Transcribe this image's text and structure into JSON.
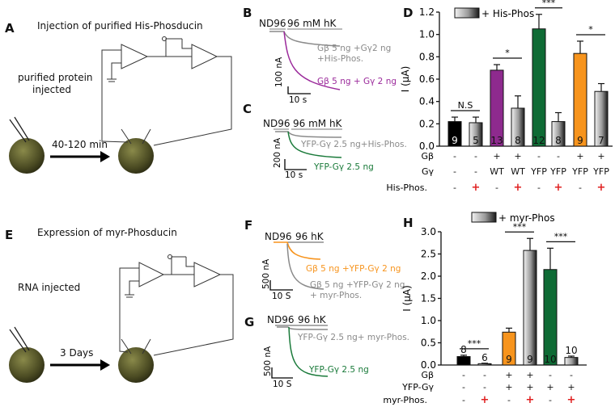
{
  "panelA": {
    "label": "A",
    "title": "Injection of purified His-Phosducin",
    "note1": "purified protein",
    "note2": "injected",
    "time": "40-120 min"
  },
  "panelE": {
    "label": "E",
    "title": "Expression of myr-Phosducin",
    "note": "RNA injected",
    "time": "3 Days"
  },
  "panelB": {
    "label": "B",
    "bath1": "ND96",
    "bath2": "96 mM hK",
    "trace1a": "Gβ 5 ng +Gγ2 ng",
    "trace1b": "+His-Phos.",
    "trace2": "Gβ 5 ng + Gγ 2 ng",
    "yscale": "100 nA",
    "xscale": "10 s",
    "color1": "#8a8a8a",
    "color2": "#9b2a9b"
  },
  "panelC": {
    "label": "C",
    "bath1": "ND96",
    "bath2": "96 mM hK",
    "trace1": "YFP-Gγ 2.5 ng+His-Phos.",
    "trace2": "YFP-Gγ 2.5 ng",
    "yscale": "200 nA",
    "xscale": "10 s",
    "color2": "#1a7a3a"
  },
  "panelF": {
    "label": "F",
    "bath1": "ND96",
    "bath2": "96 hK",
    "trace1": "Gβ 5 ng +YFP-Gγ 2 ng",
    "trace2a": "Gβ 5 ng +YFP-Gγ 2 ng",
    "trace2b": "+ myr-Phos.",
    "yscale": "500 nA",
    "xscale": "10 S",
    "color1": "#f7941d"
  },
  "panelG": {
    "label": "G",
    "bath1": "ND96",
    "bath2": "96 hK",
    "trace1": "YFP-Gγ 2.5 ng+ myr-Phos.",
    "trace2": "YFP-Gγ 2.5 ng",
    "yscale": "500 nA",
    "xscale": "10 S"
  },
  "chart_data": [
    {
      "panel": "D",
      "type": "bar",
      "ylabel": "I (μA)",
      "ylim": [
        0,
        1.2
      ],
      "yticks": [
        "0.0",
        "0.2",
        "0.4",
        "0.6",
        "0.8",
        "1.0",
        "1.2"
      ],
      "legend": "+ His-Phos",
      "legend_position": "top",
      "values": [
        0.22,
        0.21,
        0.68,
        0.34,
        1.05,
        0.22,
        0.83,
        0.49
      ],
      "errors": [
        0.04,
        0.05,
        0.05,
        0.11,
        0.13,
        0.08,
        0.11,
        0.07
      ],
      "n": [
        "9",
        "5",
        "13",
        "8",
        "12",
        "8",
        "9",
        "7"
      ],
      "colors": [
        "#000000",
        "gradient",
        "#8e2a8e",
        "gradient",
        "#0f6b35",
        "gradient",
        "#f7941d",
        "gradient"
      ],
      "rows": [
        {
          "label": "Gβ",
          "values": [
            "-",
            "-",
            "+",
            "+",
            "-",
            "-",
            "+",
            "+"
          ]
        },
        {
          "label": "Gγ",
          "values": [
            "-",
            "-",
            "WT",
            "WT",
            "YFP",
            "YFP",
            "YFP",
            "YFP"
          ]
        },
        {
          "label": "His-Phos.",
          "values": [
            "-",
            "+",
            "-",
            "+",
            "-",
            "+",
            "-",
            "+"
          ]
        }
      ],
      "significance": [
        {
          "pair": [
            0,
            1
          ],
          "text": "N.S"
        },
        {
          "pair": [
            2,
            3
          ],
          "text": "*"
        },
        {
          "pair": [
            4,
            5
          ],
          "text": "***"
        },
        {
          "pair": [
            6,
            7
          ],
          "text": "*"
        }
      ]
    },
    {
      "panel": "H",
      "type": "bar",
      "ylabel": "I (μA)",
      "ylim": [
        0,
        3.0
      ],
      "yticks": [
        "0.0",
        "0.5",
        "1.0",
        "1.5",
        "2.0",
        "2.5",
        "3.0"
      ],
      "legend": "+ myr-Phos",
      "legend_position": "top",
      "values": [
        0.19,
        0.03,
        0.74,
        2.58,
        2.15,
        0.17
      ],
      "errors": [
        0.03,
        0.01,
        0.09,
        0.27,
        0.48,
        0.03
      ],
      "n": [
        "8",
        "6",
        "9",
        "9",
        "10",
        "10"
      ],
      "colors": [
        "#000000",
        "gradient",
        "#f7941d",
        "gradient",
        "#0f6b35",
        "gradient"
      ],
      "rows": [
        {
          "label": "Gβ",
          "values": [
            "-",
            "-",
            "+",
            "+",
            "-",
            "-"
          ]
        },
        {
          "label": "YFP-Gγ",
          "values": [
            "-",
            "-",
            "+",
            "+",
            "+",
            "+"
          ]
        },
        {
          "label": "myr-Phos.",
          "values": [
            "-",
            "+",
            "-",
            "+",
            "-",
            "+"
          ]
        }
      ],
      "significance": [
        {
          "pair": [
            0,
            1
          ],
          "text": "***"
        },
        {
          "pair": [
            2,
            3
          ],
          "text": "***"
        },
        {
          "pair": [
            4,
            5
          ],
          "text": "***"
        }
      ]
    }
  ]
}
